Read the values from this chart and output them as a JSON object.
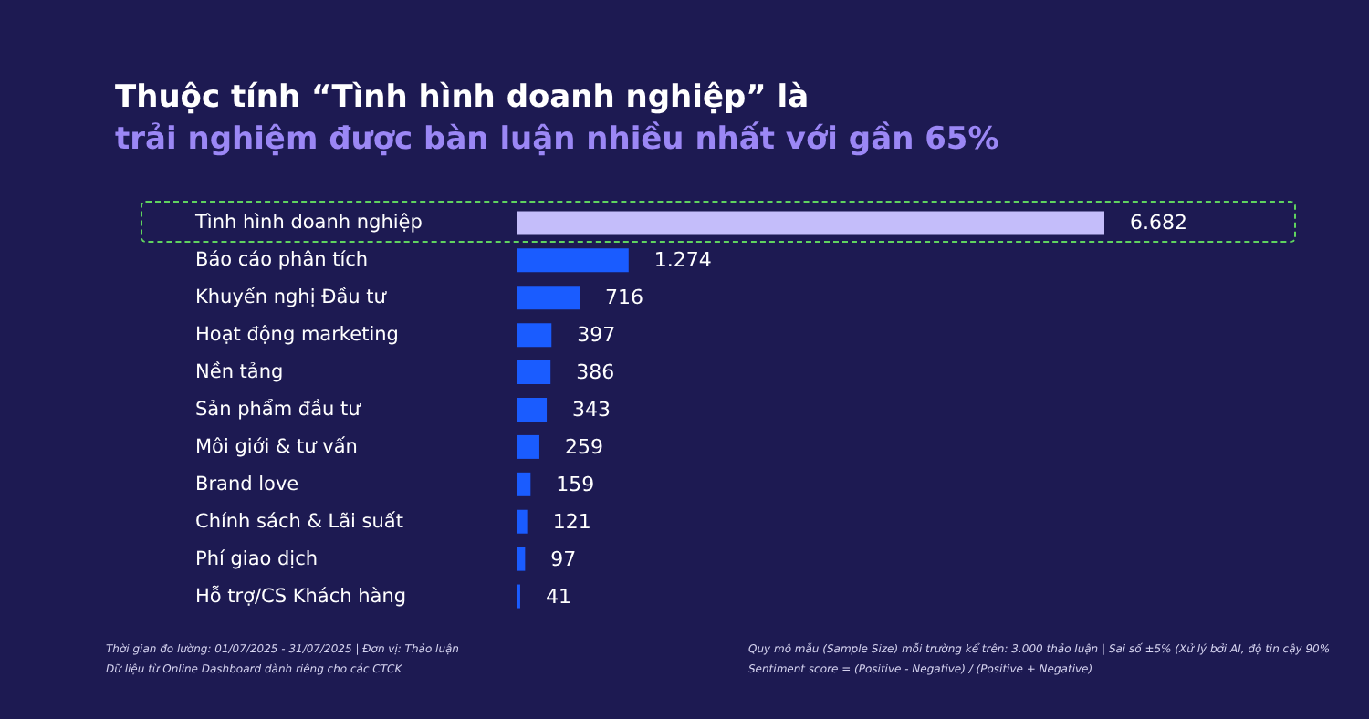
{
  "chart_data": {
    "type": "bar",
    "orientation": "horizontal",
    "title": "Thuộc tính “Tình hình doanh nghiệp” là",
    "subtitle": "trải nghiệm được bàn luận nhiều nhất với gần 65%",
    "categories": [
      "Tình hình doanh nghiệp",
      "Báo cáo phân tích",
      "Khuyến nghị Đầu tư",
      "Hoạt động marketing",
      "Nền tảng",
      "Sản phẩm đầu tư",
      "Môi giới & tư vấn",
      "Brand love",
      "Chính sách & Lãi suất",
      "Phí giao dịch",
      "Hỗ trợ/CS Khách hàng"
    ],
    "values": [
      6682,
      1274,
      716,
      397,
      386,
      343,
      259,
      159,
      121,
      97,
      41
    ],
    "value_labels": [
      "6.682",
      "1.274",
      "716",
      "397",
      "386",
      "343",
      "259",
      "159",
      "121",
      "97",
      "41"
    ],
    "colors": [
      "#c4bdfa",
      "#1a5cff",
      "#1a5cff",
      "#1a5cff",
      "#1a5cff",
      "#1a5cff",
      "#1a5cff",
      "#1a5cff",
      "#1a5cff",
      "#1a5cff",
      "#1a5cff"
    ],
    "annotations": [
      "Thời gian đo lường: 01/07/2025 - 31/07/2025 | Đơn vị: Thảo luận",
      "Dữ liệu từ Online Dashboard dành riêng cho các CTCK",
      "Quy mô mẫu (Sample Size) mỗi trường kể trên: 3.000 thảo luận | Sai số ±5% (Xử lý bởi AI, độ tin cậy 90%",
      "Sentiment score = (Positive - Negative) / (Positive + Negative)"
    ]
  }
}
